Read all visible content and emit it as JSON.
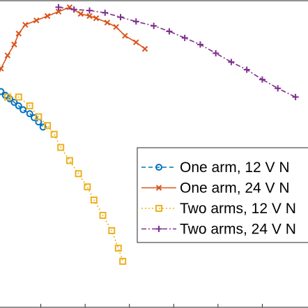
{
  "chart_data": {
    "type": "line",
    "title": "",
    "xlabel": "",
    "ylabel": "",
    "xlim": [
      0,
      1.4
    ],
    "ylim": [
      0,
      1.4
    ],
    "grid": false,
    "legend_position": "bottom-right",
    "series": [
      {
        "name": "One arm, 12 V N",
        "color": "#0072BD",
        "style": "dashed",
        "marker": "circle",
        "x": [
          0.0,
          0.02,
          0.04,
          0.06,
          0.08,
          0.1,
          0.12,
          0.15,
          0.17,
          0.19,
          0.21
        ],
        "y": [
          1.0,
          0.985,
          0.968,
          0.952,
          0.936,
          0.92,
          0.902,
          0.884,
          0.866,
          0.846,
          0.823
        ]
      },
      {
        "name": "One arm, 24 V N",
        "color": "#D95319",
        "style": "solid",
        "marker": "x",
        "x": [
          0.0,
          0.02,
          0.05,
          0.08,
          0.1,
          0.13,
          0.18,
          0.23,
          0.28,
          0.33,
          0.38,
          0.42,
          0.45,
          0.5,
          0.54,
          0.58,
          0.63,
          0.67
        ],
        "y": [
          1.04,
          1.09,
          1.15,
          1.2,
          1.25,
          1.29,
          1.31,
          1.33,
          1.35,
          1.37,
          1.34,
          1.33,
          1.32,
          1.3,
          1.28,
          1.24,
          1.21,
          1.18
        ]
      },
      {
        "name": "Two arms, 12 V N",
        "color": "#EDB120",
        "style": "dotted",
        "marker": "square",
        "x": [
          0.05,
          0.1,
          0.15,
          0.19,
          0.23,
          0.26,
          0.29,
          0.33,
          0.37,
          0.41,
          0.44,
          0.48,
          0.52,
          0.55,
          0.57
        ],
        "y": [
          0.96,
          0.96,
          0.92,
          0.87,
          0.83,
          0.79,
          0.73,
          0.67,
          0.61,
          0.55,
          0.49,
          0.42,
          0.35,
          0.27,
          0.21
        ]
      },
      {
        "name": "Two arms, 24 V N",
        "color": "#7E2F8E",
        "style": "dashdot",
        "marker": "plus",
        "x": [
          0.28,
          0.35,
          0.42,
          0.49,
          0.56,
          0.63,
          0.71,
          0.78,
          0.85,
          0.92,
          0.99,
          1.06,
          1.13,
          1.2,
          1.27,
          1.35
        ],
        "y": [
          1.37,
          1.36,
          1.355,
          1.345,
          1.325,
          1.305,
          1.285,
          1.26,
          1.23,
          1.2,
          1.16,
          1.12,
          1.085,
          1.04,
          1.0,
          0.96
        ]
      }
    ]
  }
}
